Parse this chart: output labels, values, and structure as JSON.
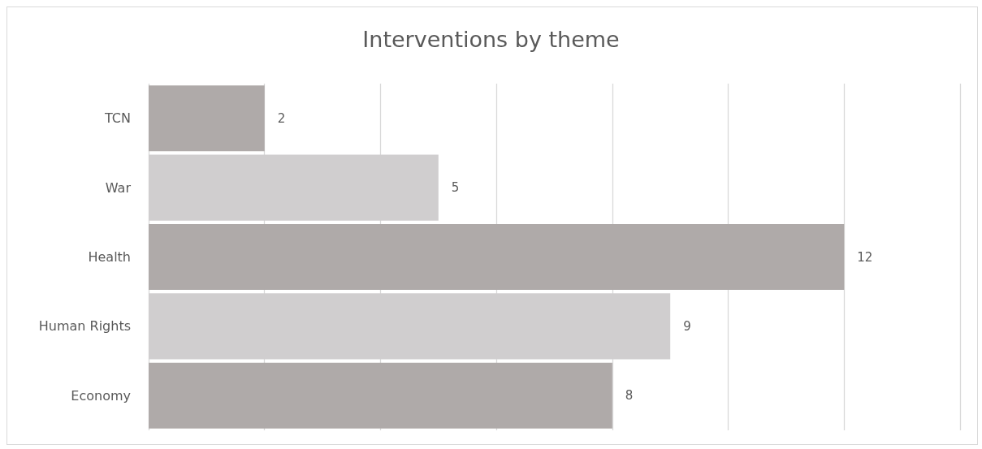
{
  "chart_data": {
    "type": "bar",
    "orientation": "horizontal",
    "title": "Interventions by theme",
    "categories": [
      "TCN",
      "War",
      "Health",
      "Human Rights",
      "Economy"
    ],
    "values": [
      2,
      5,
      12,
      9,
      8
    ],
    "colors": [
      "#afaaa9",
      "#d0cecf",
      "#afaaa9",
      "#d0cecf",
      "#afaaa9"
    ],
    "xlim": [
      0,
      14
    ],
    "xticks": [
      {
        "value": 0,
        "label": null
      },
      {
        "value": 2,
        "label": null
      },
      {
        "value": 4,
        "label": null
      },
      {
        "value": 6,
        "label": null
      },
      {
        "value": 8,
        "label": null
      },
      {
        "value": 10,
        "label": null
      },
      {
        "value": 12,
        "label": null
      },
      {
        "value": 14,
        "label": null
      }
    ],
    "grid": "x",
    "tick_labels": "y",
    "data_labels": true
  }
}
